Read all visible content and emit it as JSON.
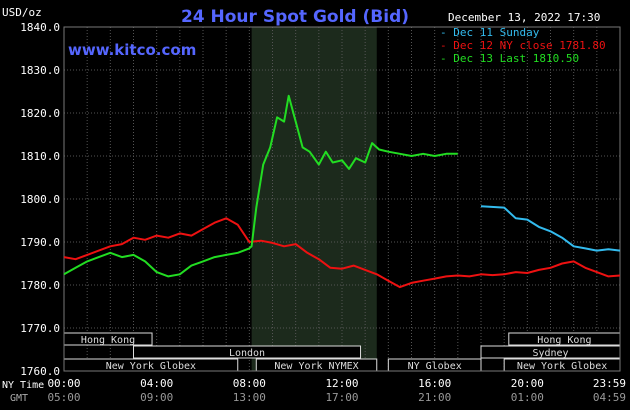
{
  "chart_data": {
    "type": "line",
    "title": "24 Hour Spot Gold (Bid)",
    "website": "www.kitco.com",
    "ylabel": "USD/oz",
    "date_label": "December 13, 2022 17:30",
    "ylim": [
      1760,
      1840
    ],
    "yticks": [
      "1760.0",
      "1770.0",
      "1780.0",
      "1790.0",
      "1800.0",
      "1810.0",
      "1820.0",
      "1830.0",
      "1840.0"
    ],
    "ny_time_label": "NY Time",
    "gmt_label": "GMT",
    "x_ticks_ny": [
      "00:00",
      "04:00",
      "08:00",
      "12:00",
      "16:00",
      "20:00",
      "23:59"
    ],
    "x_ticks_gmt": [
      "05:00",
      "09:00",
      "13:00",
      "17:00",
      "21:00",
      "01:00",
      "04:59"
    ],
    "xlim_hours": [
      0,
      24
    ],
    "highlight_hours": [
      8.1,
      13.5
    ],
    "grid": true,
    "legend_position": "top-right",
    "series": [
      {
        "name": "Dec 11 Sunday",
        "color": "#33bbee",
        "x": [
          18,
          19,
          19.5,
          20,
          20.5,
          21,
          21.5,
          22,
          22.5,
          23,
          23.5,
          24
        ],
        "y": [
          1798.3,
          1798.0,
          1795.5,
          1795.2,
          1793.5,
          1792.5,
          1791.0,
          1789.0,
          1788.5,
          1788.0,
          1788.3,
          1788.0
        ]
      },
      {
        "name": "Dec 12 NY close 1781.80",
        "color": "#ee1111",
        "x": [
          0,
          0.5,
          1,
          1.5,
          2,
          2.5,
          3,
          3.5,
          4,
          4.5,
          5,
          5.5,
          6,
          6.5,
          7,
          7.5,
          8,
          8.5,
          9,
          9.5,
          10,
          10.5,
          11,
          11.5,
          12,
          12.5,
          13,
          13.5,
          14,
          14.5,
          15,
          15.5,
          16,
          16.5,
          17,
          17.5,
          18,
          18.5,
          19,
          19.5,
          20,
          20.5,
          21,
          21.5,
          22,
          22.5,
          23,
          23.5,
          24
        ],
        "y": [
          1786.5,
          1786.0,
          1787.0,
          1788.0,
          1789.0,
          1789.5,
          1791.0,
          1790.5,
          1791.5,
          1791.0,
          1792.0,
          1791.5,
          1793.0,
          1794.5,
          1795.5,
          1794.0,
          1790.0,
          1790.3,
          1789.8,
          1789.0,
          1789.5,
          1787.5,
          1786.0,
          1784.0,
          1783.8,
          1784.5,
          1783.5,
          1782.5,
          1781.0,
          1779.5,
          1780.5,
          1781.0,
          1781.5,
          1782.0,
          1782.2,
          1782.0,
          1782.5,
          1782.3,
          1782.5,
          1783.0,
          1782.8,
          1783.5,
          1784.0,
          1785.0,
          1785.5,
          1784.0,
          1783.0,
          1782.0,
          1782.2
        ]
      },
      {
        "name": "Dec 13 Last 1810.50",
        "color": "#22dd22",
        "x": [
          0,
          0.5,
          1,
          1.5,
          2,
          2.5,
          3,
          3.5,
          4,
          4.5,
          5,
          5.5,
          6,
          6.5,
          7,
          7.5,
          8,
          8.1,
          8.3,
          8.6,
          8.9,
          9.2,
          9.5,
          9.7,
          10,
          10.3,
          10.6,
          11,
          11.3,
          11.6,
          12,
          12.3,
          12.6,
          13,
          13.3,
          13.6,
          14,
          14.5,
          15,
          15.5,
          16,
          16.5,
          17
        ],
        "y": [
          1782.5,
          1784.0,
          1785.5,
          1786.5,
          1787.5,
          1786.5,
          1787.0,
          1785.5,
          1783.0,
          1782.0,
          1782.5,
          1784.5,
          1785.5,
          1786.5,
          1787.0,
          1787.5,
          1788.5,
          1789.0,
          1798.0,
          1808.0,
          1812.0,
          1819.0,
          1818.0,
          1824.0,
          1818.0,
          1812.0,
          1811.0,
          1808.0,
          1811.0,
          1808.5,
          1809.0,
          1807.0,
          1809.5,
          1808.5,
          1813.0,
          1811.5,
          1811.0,
          1810.5,
          1810.0,
          1810.5,
          1810.0,
          1810.5,
          1810.5
        ]
      }
    ],
    "market_rows": [
      [
        {
          "label": "Hong Kong",
          "start": 0,
          "end": 3.8
        },
        {
          "label": "Hong Kong",
          "start": 19.2,
          "end": 24
        }
      ],
      [
        {
          "label": "London",
          "start": 3.0,
          "end": 12.8
        },
        {
          "label": "Sydney",
          "start": 18.0,
          "end": 24
        }
      ],
      [
        {
          "label": "New York Globex",
          "start": 0,
          "end": 7.5
        },
        {
          "label": "New York NYMEX",
          "start": 8.3,
          "end": 13.5
        },
        {
          "label": "NY Globex",
          "start": 14.0,
          "end": 18.0
        },
        {
          "label": "New York Globex",
          "start": 19.0,
          "end": 24
        }
      ]
    ]
  }
}
